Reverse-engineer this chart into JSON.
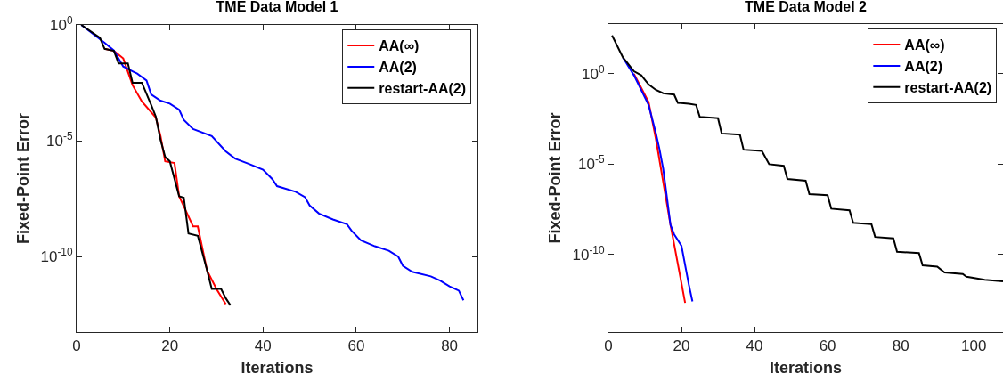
{
  "chart_data": [
    {
      "type": "line",
      "title": "TME Data Model 1",
      "xlabel": "Iterations",
      "ylabel": "Fixed-Point Error",
      "log": "y",
      "legend": "top right",
      "xlim": [
        0,
        86
      ],
      "xticks": [
        0,
        20,
        40,
        60,
        80
      ],
      "ylim": [
        5.5e-14,
        1
      ],
      "yticks": [
        {
          "value": 1,
          "label": "10$^{0}$"
        },
        {
          "value": 1e-05,
          "label": "10$^{-5}$"
        },
        {
          "value": 1e-10,
          "label": "10$^{-10}$"
        }
      ],
      "series": [
        {
          "name": "AA(∞)",
          "color": "#ff0000",
          "x": [
            6,
            8,
            10,
            12,
            14,
            17,
            18,
            19,
            21,
            22,
            25,
            26,
            28,
            30,
            32
          ],
          "values": [
            0.093,
            0.076,
            0.036,
            0.0025,
            0.0005,
            0.0001,
            1.6e-05,
            1.3e-06,
            1.1e-06,
            4e-08,
            2e-09,
            2e-09,
            2.5e-11,
            4e-12,
            8.9e-13
          ]
        },
        {
          "name": "AA(2)",
          "color": "#0000ff",
          "x": [
            1,
            6,
            8,
            10,
            12,
            13,
            15,
            16,
            18,
            20,
            22,
            23,
            25,
            29,
            32,
            34,
            37,
            40,
            42,
            43,
            47,
            49,
            50,
            52,
            55,
            58,
            59,
            61,
            64,
            67,
            69,
            70,
            72,
            76,
            78,
            80,
            82,
            83
          ],
          "values": [
            1,
            0.17,
            0.079,
            0.016,
            0.01,
            0.0079,
            0.004,
            0.001,
            0.00054,
            0.0004,
            0.00022,
            7.9e-05,
            3.2e-05,
            1.6e-05,
            3.5e-06,
            1.7e-06,
            1e-06,
            5.6e-07,
            2.2e-07,
            1.1e-07,
            6.3e-08,
            3.7e-08,
            1.6e-08,
            7.2e-09,
            4e-09,
            2.5e-09,
            1.3e-09,
            5e-10,
            2.8e-10,
            1.8e-10,
            1e-10,
            4e-11,
            2.2e-11,
            1.4e-11,
            9.3e-12,
            5.2e-12,
            3.4e-12,
            1.3e-12
          ]
        },
        {
          "name": "restart-AA(2)",
          "color": "#000000",
          "x": [
            1,
            5,
            6,
            8,
            9,
            11,
            12,
            14,
            16,
            17,
            18,
            19,
            20,
            22,
            23,
            24,
            26,
            28,
            29,
            31,
            32,
            33
          ],
          "values": [
            1,
            0.28,
            0.093,
            0.076,
            0.022,
            0.022,
            0.0032,
            0.0032,
            0.00035,
            0.00011,
            1.1e-05,
            2e-06,
            1.3e-06,
            4e-08,
            3.5e-08,
            1e-09,
            7.9e-10,
            2.5e-11,
            4e-12,
            4e-12,
            1.6e-12,
            7.9e-13
          ]
        }
      ]
    },
    {
      "type": "line",
      "title": "TME Data Model 2",
      "xlabel": "Iterations",
      "ylabel": "Fixed-Point Error",
      "log": "y",
      "legend": "top right",
      "xlim": [
        0,
        108
      ],
      "xticks": [
        0,
        20,
        40,
        60,
        80,
        100
      ],
      "ylim": [
        5e-15,
        575
      ],
      "yticks": [
        {
          "value": 1,
          "label": "10$^{0}$"
        },
        {
          "value": 1e-05,
          "label": "10$^{-5}$"
        },
        {
          "value": 1e-10,
          "label": "10$^{-10}$"
        }
      ],
      "series": [
        {
          "name": "AA(∞)",
          "color": "#ff0000",
          "x": [
            7,
            11,
            13,
            17,
            21
          ],
          "values": [
            1.0,
            0.028,
            0.00025,
            4.3e-09,
            2.1e-13
          ]
        },
        {
          "name": "AA(2)",
          "color": "#0000ff",
          "x": [
            4,
            7,
            11,
            13,
            14,
            15,
            16,
            17,
            18,
            20,
            22,
            23
          ],
          "values": [
            7.9,
            0.83,
            0.019,
            0.00052,
            6.5e-05,
            5.5e-06,
            1.6e-07,
            4.3e-09,
            1.3e-09,
            3e-10,
            2.2e-12,
            2.5e-13
          ]
        },
        {
          "name": "restart-AA(2)",
          "color": "#000000",
          "x": [
            1,
            4,
            5,
            7,
            9,
            11,
            13,
            15,
            18,
            19,
            22,
            24,
            25,
            30,
            31,
            36,
            37,
            42,
            44,
            48,
            49,
            54,
            55,
            60,
            61,
            66,
            67,
            72,
            73,
            78,
            79,
            85,
            86,
            90,
            92,
            97,
            98,
            103,
            108
          ],
          "values": [
            135,
            7.9,
            4.5,
            1.4,
            0.83,
            0.26,
            0.13,
            0.085,
            0.071,
            0.025,
            0.022,
            0.019,
            0.0042,
            0.0035,
            0.0005,
            0.00043,
            6.3e-05,
            5.4e-05,
            1e-05,
            8.1e-06,
            1.5e-06,
            1.2e-06,
            2.2e-07,
            1.9e-07,
            3.4e-08,
            2.8e-08,
            5.6e-09,
            4.7e-09,
            9.3e-10,
            7.8e-10,
            1.4e-10,
            1.2e-10,
            2.5e-11,
            2.1e-11,
            1e-11,
            8.3e-12,
            5.8e-12,
            3.9e-12,
            3.2e-12
          ]
        }
      ]
    }
  ]
}
